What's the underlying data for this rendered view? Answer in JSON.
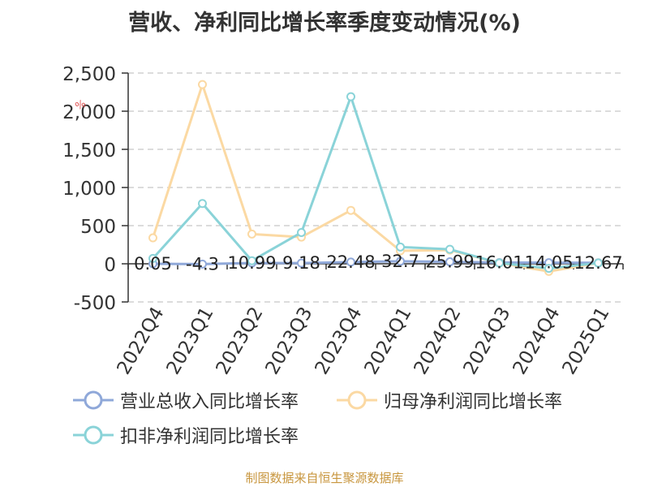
{
  "title": "营收、净利同比增长率季度变动情况(%)",
  "source_note": "制图数据来自恒生聚源数据库",
  "watermark": "%",
  "colors": {
    "revenue": "#8fa8d9",
    "parent_profit": "#fbd9a3",
    "deducted_profit": "#8ad3d8",
    "axis": "#333333",
    "grid": "#c8c8c8",
    "source": "#c8963e"
  },
  "legend": [
    {
      "label": "营业总收入同比增长率",
      "color": "#8fa8d9"
    },
    {
      "label": "归母净利润同比增长率",
      "color": "#fbd9a3"
    },
    {
      "label": "扣非净利润同比增长率",
      "color": "#8ad3d8"
    }
  ],
  "chart_data": {
    "type": "line",
    "title": "营收、净利同比增长率季度变动情况(%)",
    "categories": [
      "2022Q4",
      "2023Q1",
      "2023Q2",
      "2023Q3",
      "2023Q4",
      "2024Q1",
      "2024Q2",
      "2024Q3",
      "2024Q4",
      "2025Q1"
    ],
    "ylim": [
      -500,
      2500
    ],
    "yticks": [
      -500,
      0,
      500,
      1000,
      1500,
      2000,
      2500
    ],
    "ytick_labels": [
      "-500",
      "0",
      "500",
      "1,000",
      "1,500",
      "2,000",
      "2,500"
    ],
    "grid": true,
    "legend_position": "bottom",
    "series": [
      {
        "name": "营业总收入同比增长率",
        "color": "#8fa8d9",
        "values": [
          0.05,
          -4.3,
          10.99,
          9.18,
          22.48,
          32.7,
          25.99,
          16.01,
          14.05,
          12.67
        ],
        "labels": [
          "0.05",
          "-4.3",
          "10.99",
          "9.18",
          "22.48",
          "32.7",
          "25.99",
          "16.01",
          "14.05",
          "12.67"
        ]
      },
      {
        "name": "归母净利润同比增长率",
        "color": "#fbd9a3",
        "values": [
          340,
          2350,
          390,
          350,
          700,
          170,
          180,
          10,
          -100,
          10
        ]
      },
      {
        "name": "扣非净利润同比增长率",
        "color": "#8ad3d8",
        "values": [
          70,
          790,
          40,
          410,
          2190,
          220,
          190,
          10,
          -60,
          10
        ]
      }
    ]
  }
}
